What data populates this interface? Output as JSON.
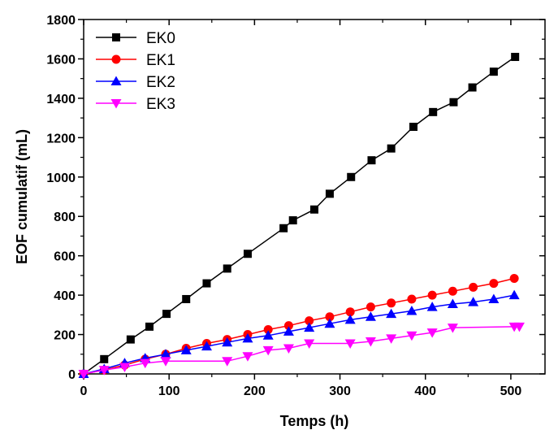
{
  "chart_data": {
    "type": "line",
    "title": "",
    "xlabel": "Temps (h)",
    "ylabel": "EOF cumulatif (mL)",
    "xlim": [
      0,
      540
    ],
    "ylim": [
      0,
      1800
    ],
    "xticks": [
      0,
      100,
      200,
      300,
      400,
      500
    ],
    "yticks": [
      0,
      200,
      400,
      600,
      800,
      1000,
      1200,
      1400,
      1600,
      1800
    ],
    "grid": false,
    "legend_position": "top-left",
    "series": [
      {
        "name": "EK0",
        "color": "#000000",
        "marker": "square",
        "x": [
          0,
          24,
          55,
          77,
          97,
          120,
          144,
          168,
          192,
          234,
          245,
          270,
          288,
          313,
          337,
          360,
          386,
          409,
          433,
          455,
          480,
          505
        ],
        "y": [
          0,
          75,
          175,
          240,
          305,
          380,
          460,
          535,
          610,
          740,
          780,
          835,
          915,
          1000,
          1085,
          1145,
          1255,
          1330,
          1380,
          1455,
          1535,
          1610
        ]
      },
      {
        "name": "EK1",
        "color": "#ff0000",
        "marker": "circle",
        "x": [
          0,
          24,
          48,
          72,
          96,
          120,
          144,
          168,
          192,
          216,
          240,
          264,
          288,
          312,
          336,
          360,
          384,
          408,
          432,
          456,
          480,
          504
        ],
        "y": [
          0,
          20,
          45,
          75,
          100,
          130,
          155,
          175,
          200,
          225,
          245,
          270,
          290,
          315,
          340,
          360,
          380,
          400,
          420,
          440,
          460,
          485
        ]
      },
      {
        "name": "EK2",
        "color": "#0000ff",
        "marker": "triangle-up",
        "x": [
          0,
          24,
          48,
          72,
          96,
          120,
          144,
          168,
          192,
          216,
          240,
          264,
          288,
          312,
          336,
          360,
          384,
          408,
          432,
          456,
          480,
          504
        ],
        "y": [
          0,
          25,
          55,
          80,
          100,
          120,
          140,
          160,
          180,
          195,
          215,
          235,
          255,
          275,
          290,
          305,
          320,
          340,
          355,
          365,
          380,
          400
        ]
      },
      {
        "name": "EK3",
        "color": "#ff00ff",
        "marker": "triangle-down",
        "x": [
          0,
          24,
          48,
          72,
          96,
          168,
          192,
          216,
          240,
          264,
          312,
          336,
          360,
          384,
          408,
          432,
          504,
          510
        ],
        "y": [
          0,
          20,
          35,
          55,
          65,
          65,
          90,
          120,
          130,
          155,
          155,
          165,
          180,
          195,
          210,
          235,
          240,
          240
        ]
      }
    ]
  }
}
